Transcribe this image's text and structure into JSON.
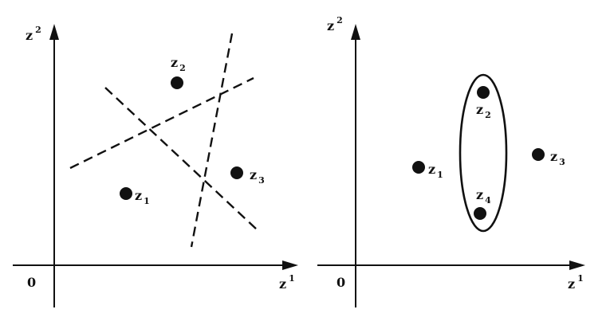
{
  "left_panel": {
    "origin_label": "0",
    "y_axis": {
      "base": "z",
      "sup": "2"
    },
    "x_axis": {
      "base": "z",
      "sup": "1"
    },
    "points": [
      {
        "base": "z",
        "sub": "2"
      },
      {
        "base": "z",
        "sub": "1"
      },
      {
        "base": "z",
        "sub": "3"
      }
    ]
  },
  "right_panel": {
    "origin_label": "0",
    "y_axis": {
      "base": "z",
      "sup": "2"
    },
    "x_axis": {
      "base": "z",
      "sup": "1"
    },
    "points": [
      {
        "base": "z",
        "sub": "1"
      },
      {
        "base": "z",
        "sub": "2"
      },
      {
        "base": "z",
        "sub": "4"
      },
      {
        "base": "z",
        "sub": "3"
      }
    ]
  }
}
